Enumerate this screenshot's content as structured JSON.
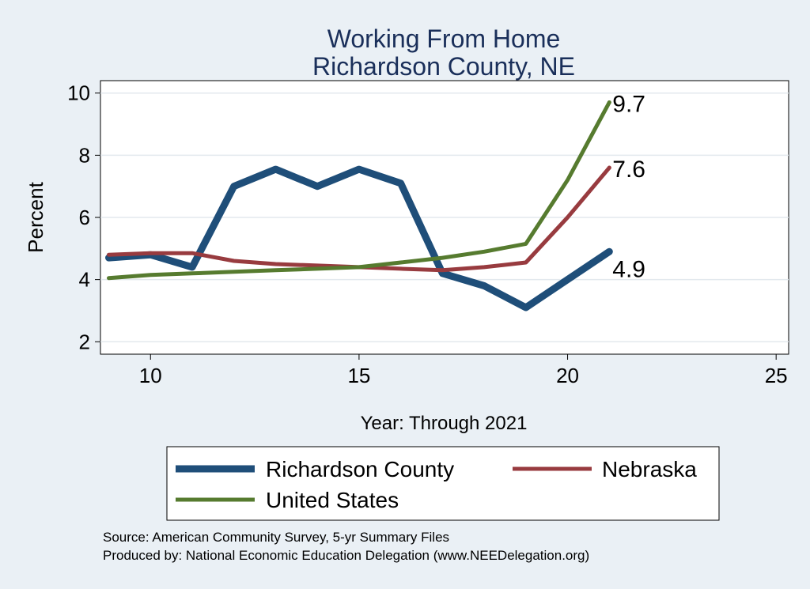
{
  "chart_data": {
    "type": "line",
    "title": [
      "Working From Home",
      "Richardson County, NE"
    ],
    "xlabel": "Year: Through 2021",
    "ylabel": "Percent",
    "xlim": [
      8.8,
      25.3
    ],
    "ylim": [
      1.6,
      10.4
    ],
    "xticks": [
      10,
      15,
      20,
      25
    ],
    "yticks": [
      2,
      4,
      6,
      8,
      10
    ],
    "grid": true,
    "legend_placement": "bottom",
    "series": [
      {
        "name": "Richardson County",
        "color": "#1f4e79",
        "width": "thick",
        "x": [
          9,
          10,
          11,
          12,
          13,
          14,
          15,
          16,
          17,
          18,
          19,
          20,
          21
        ],
        "y": [
          4.7,
          4.8,
          4.4,
          7.0,
          7.55,
          7.0,
          7.55,
          7.1,
          4.2,
          3.8,
          3.1,
          4.0,
          4.9
        ],
        "end_label": "4.9"
      },
      {
        "name": "Nebraska",
        "color": "#983b3f",
        "width": "medium",
        "x": [
          9,
          10,
          11,
          12,
          13,
          14,
          15,
          16,
          17,
          18,
          19,
          20,
          21
        ],
        "y": [
          4.8,
          4.85,
          4.85,
          4.6,
          4.5,
          4.45,
          4.4,
          4.35,
          4.3,
          4.4,
          4.55,
          6.0,
          7.6
        ],
        "end_label": "7.6"
      },
      {
        "name": "United States",
        "color": "#567b2f",
        "width": "medium",
        "x": [
          9,
          10,
          11,
          12,
          13,
          14,
          15,
          16,
          17,
          18,
          19,
          20,
          21
        ],
        "y": [
          4.05,
          4.15,
          4.2,
          4.25,
          4.3,
          4.35,
          4.4,
          4.55,
          4.7,
          4.9,
          5.15,
          7.2,
          9.7
        ],
        "end_label": "9.7"
      }
    ],
    "notes": [
      "Source: American Community Survey, 5-yr Summary Files",
      "Produced by: National Economic Education Delegation (www.NEEDelegation.org)"
    ]
  }
}
